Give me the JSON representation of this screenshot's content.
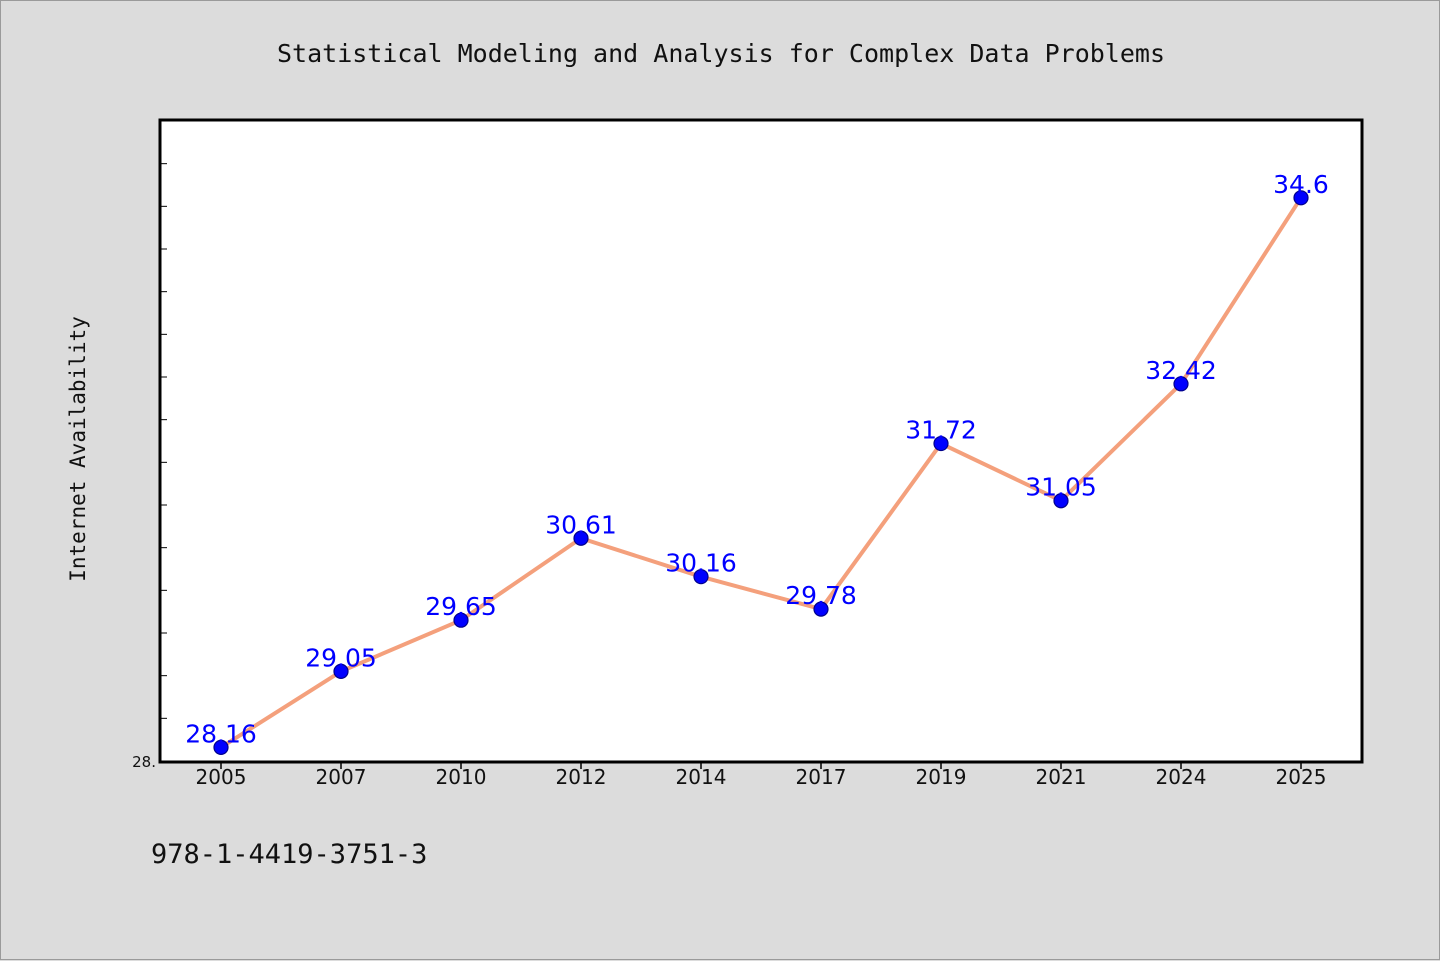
{
  "chart_data": {
    "type": "line",
    "title": "Statistical Modeling and Analysis for Complex Data Problems",
    "xlabel": "",
    "ylabel": "Internet Availability",
    "categories": [
      "2005",
      "2007",
      "2010",
      "2012",
      "2014",
      "2017",
      "2019",
      "2021",
      "2024",
      "2025"
    ],
    "series": [
      {
        "values": [
          28.16,
          29.05,
          29.65,
          30.61,
          30.16,
          29.78,
          31.72,
          31.05,
          32.42,
          34.6
        ],
        "labels": [
          "28.16",
          "29.05",
          "29.65",
          "30.61",
          "30.16",
          "29.78",
          "31.72",
          "31.05",
          "32.42",
          "34.6"
        ]
      }
    ],
    "ylim": [
      28.0,
      35.5
    ],
    "y_tick_label": "28.",
    "grid": false,
    "legend": "none",
    "colors": {
      "line": "#f4a07c",
      "marker": "#0000ff",
      "marker_edge": "#00008b",
      "data_label": "#0000ff",
      "plot_background": "#ffffff",
      "page_background": "#dcdcdc"
    }
  },
  "footer": {
    "isbn": "978-1-4419-3751-3"
  }
}
